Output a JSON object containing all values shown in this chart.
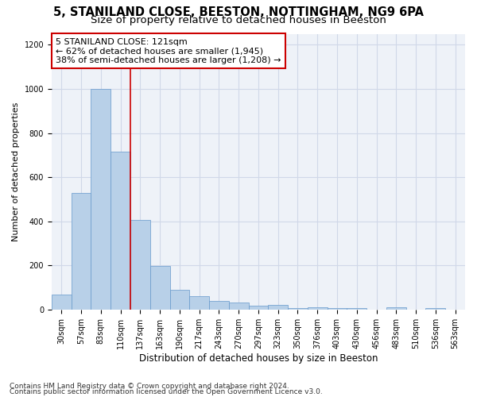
{
  "title1": "5, STANILAND CLOSE, BEESTON, NOTTINGHAM, NG9 6PA",
  "title2": "Size of property relative to detached houses in Beeston",
  "xlabel": "Distribution of detached houses by size in Beeston",
  "ylabel": "Number of detached properties",
  "categories": [
    "30sqm",
    "57sqm",
    "83sqm",
    "110sqm",
    "137sqm",
    "163sqm",
    "190sqm",
    "217sqm",
    "243sqm",
    "270sqm",
    "297sqm",
    "323sqm",
    "350sqm",
    "376sqm",
    "403sqm",
    "430sqm",
    "456sqm",
    "483sqm",
    "510sqm",
    "536sqm",
    "563sqm"
  ],
  "values": [
    68,
    527,
    999,
    714,
    407,
    197,
    90,
    60,
    40,
    32,
    17,
    20,
    5,
    10,
    5,
    8,
    0,
    12,
    0,
    5,
    0
  ],
  "bar_color": "#b8d0e8",
  "bar_edgecolor": "#6699cc",
  "vline_x": 3.5,
  "vline_color": "#cc0000",
  "annotation_line1": "5 STANILAND CLOSE: 121sqm",
  "annotation_line2": "← 62% of detached houses are smaller (1,945)",
  "annotation_line3": "38% of semi-detached houses are larger (1,208) →",
  "annotation_box_color": "#ffffff",
  "annotation_box_edgecolor": "#cc0000",
  "ylim": [
    0,
    1250
  ],
  "yticks": [
    0,
    200,
    400,
    600,
    800,
    1000,
    1200
  ],
  "grid_color": "#d0d8e8",
  "bg_color": "#eef2f8",
  "footer1": "Contains HM Land Registry data © Crown copyright and database right 2024.",
  "footer2": "Contains public sector information licensed under the Open Government Licence v3.0.",
  "title1_fontsize": 10.5,
  "title2_fontsize": 9.5,
  "xlabel_fontsize": 8.5,
  "ylabel_fontsize": 8,
  "tick_fontsize": 7,
  "annot_fontsize": 8,
  "footer_fontsize": 6.5
}
